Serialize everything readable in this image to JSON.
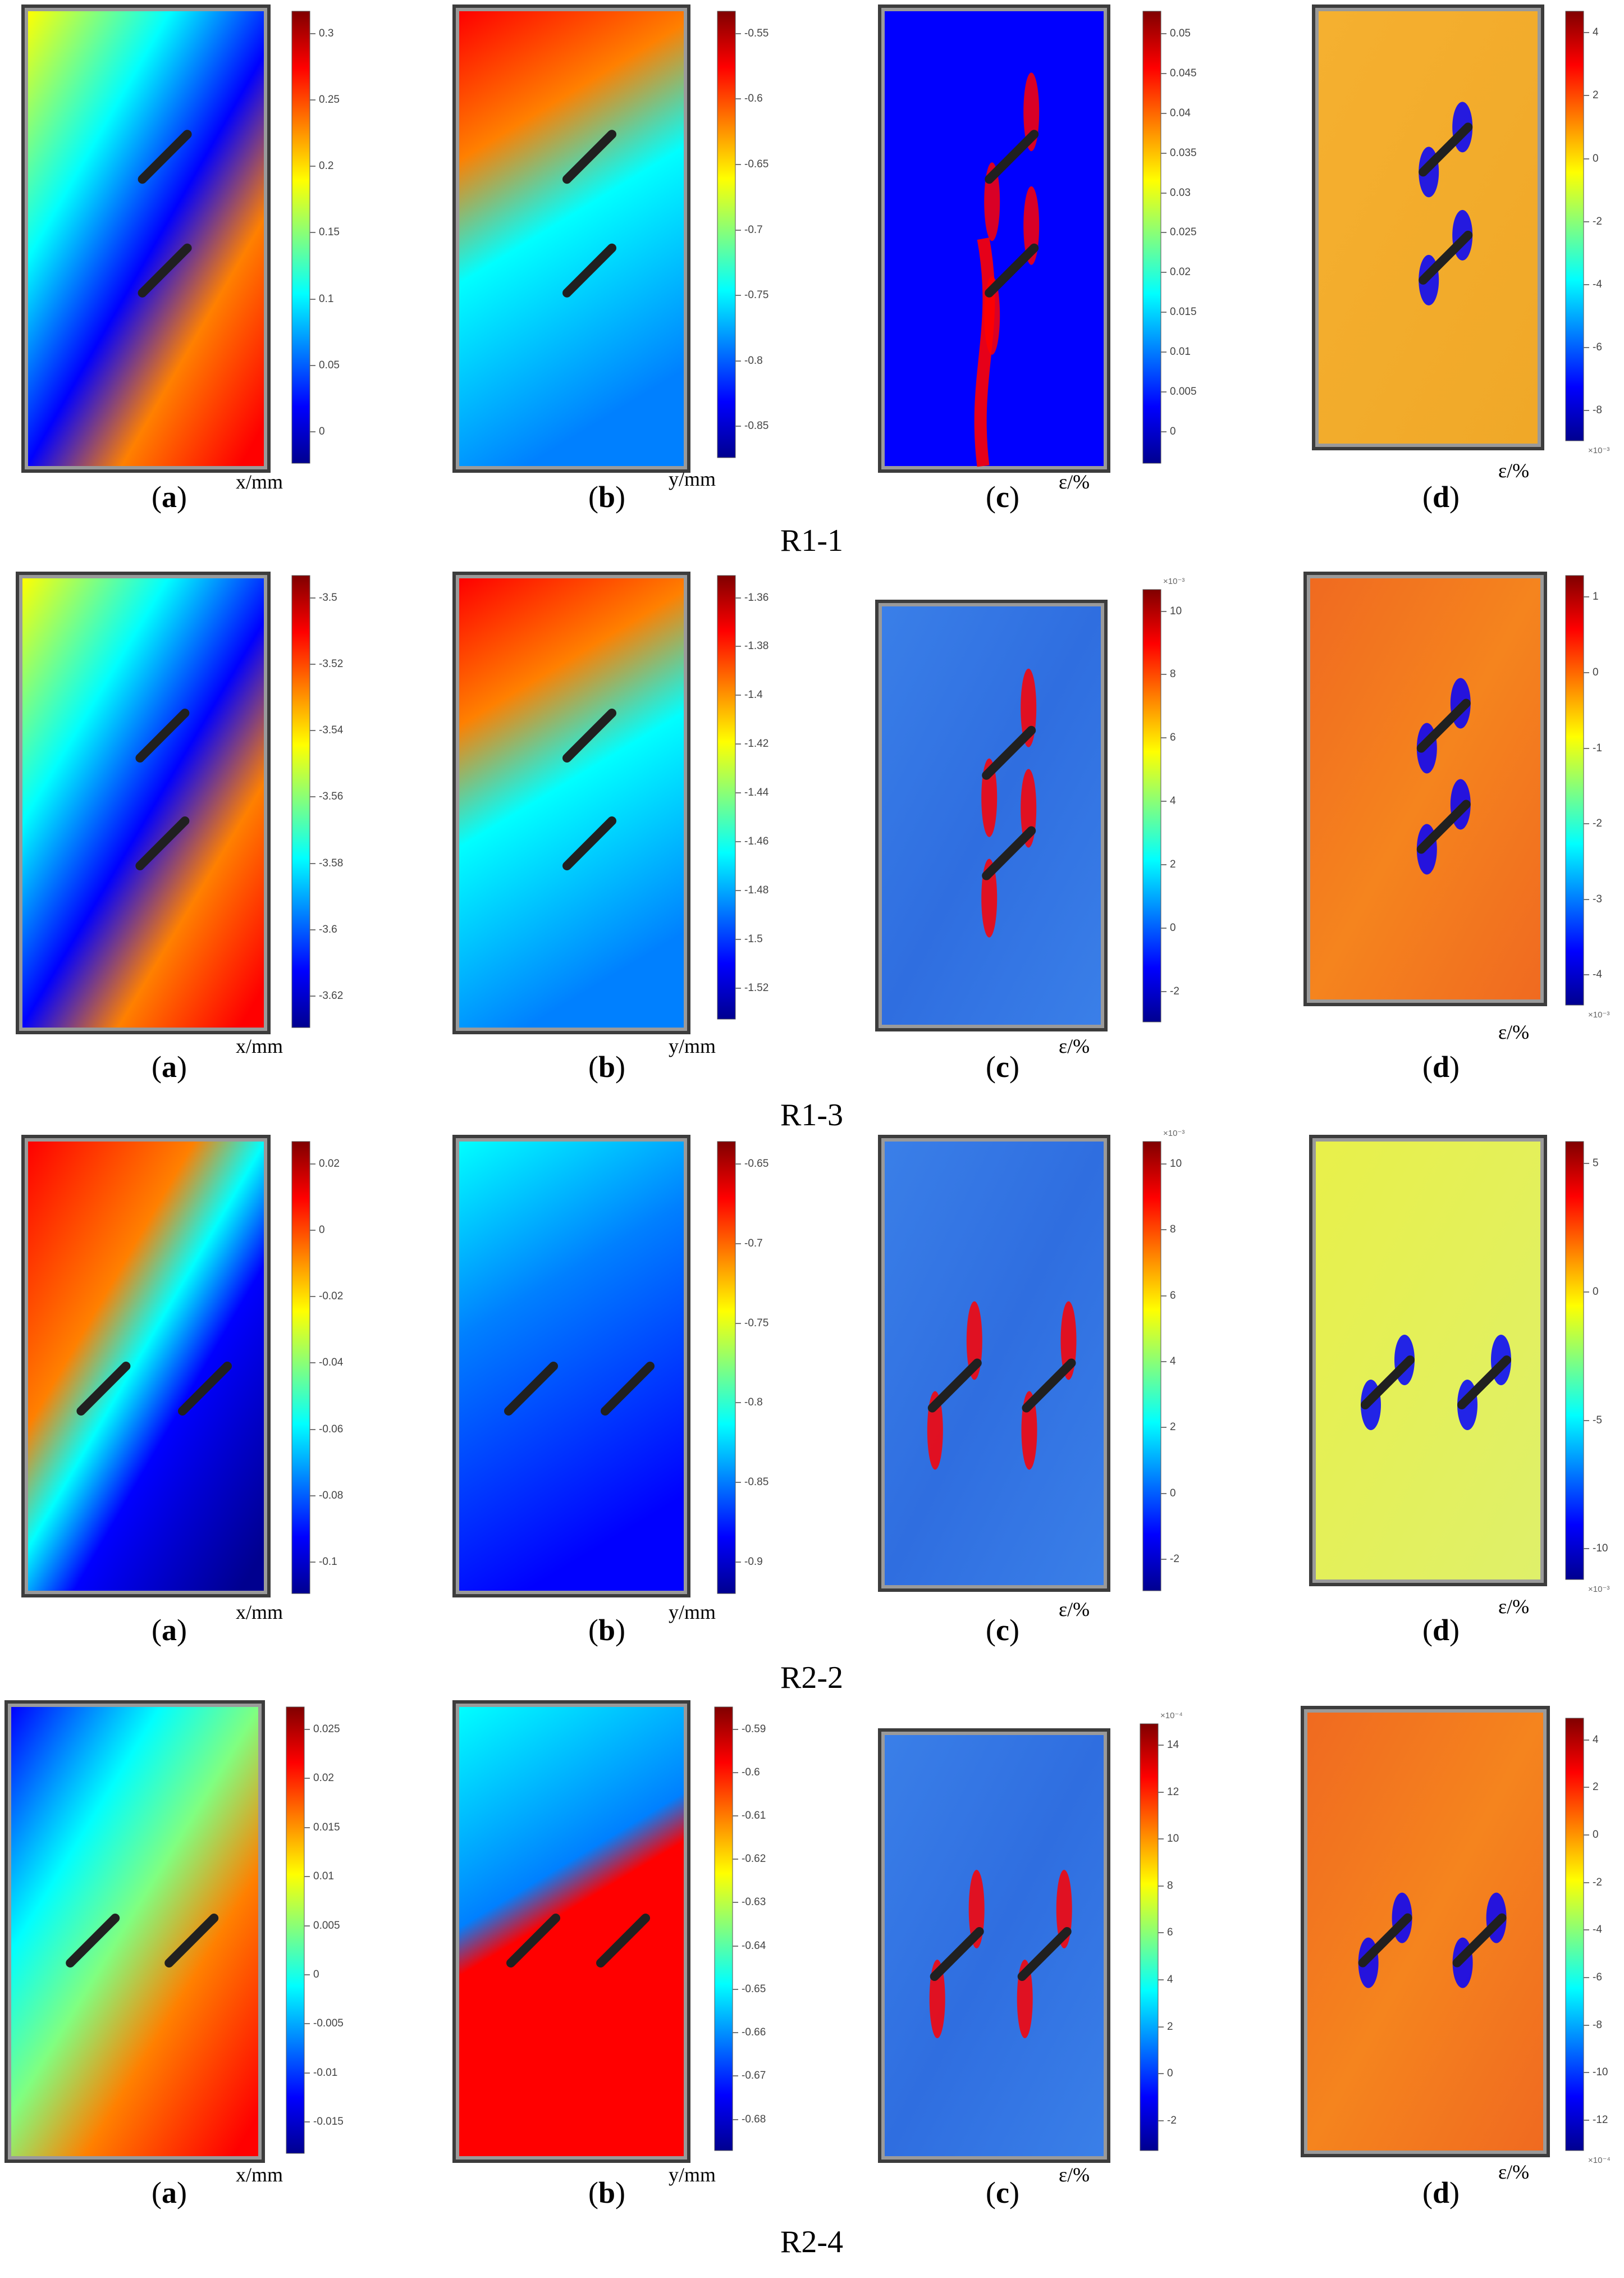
{
  "rows": [
    {
      "title": "R1-1",
      "panels": [
        {
          "label": "a",
          "unit": "x/mm",
          "exponent": "",
          "ticks": [
            "0.3",
            "0.25",
            "0.2",
            "0.15",
            "0.1",
            "0.05",
            "0"
          ],
          "map": "x11"
        },
        {
          "label": "b",
          "unit": "y/mm",
          "exponent": "",
          "ticks": [
            "-0.55",
            "-0.6",
            "-0.65",
            "-0.7",
            "-0.75",
            "-0.8",
            "-0.85"
          ],
          "map": "y11"
        },
        {
          "label": "c",
          "unit": "ε/%",
          "exponent": "",
          "ticks": [
            "0.05",
            "0.045",
            "0.04",
            "0.035",
            "0.03",
            "0.025",
            "0.02",
            "0.015",
            "0.01",
            "0.005",
            "0"
          ],
          "map": "c11"
        },
        {
          "label": "d",
          "unit": "ε/%",
          "exponent": "×10⁻³",
          "ticks": [
            "4",
            "2",
            "0",
            "-2",
            "-4",
            "-6",
            "-8"
          ],
          "map": "d11"
        }
      ]
    },
    {
      "title": "R1-3",
      "panels": [
        {
          "label": "a",
          "unit": "x/mm",
          "exponent": "",
          "ticks": [
            "-3.5",
            "-3.52",
            "-3.54",
            "-3.56",
            "-3.58",
            "-3.6",
            "-3.62"
          ],
          "map": "x13"
        },
        {
          "label": "b",
          "unit": "y/mm",
          "exponent": "",
          "ticks": [
            "-1.36",
            "-1.38",
            "-1.4",
            "-1.42",
            "-1.44",
            "-1.46",
            "-1.48",
            "-1.5",
            "-1.52"
          ],
          "map": "y13"
        },
        {
          "label": "c",
          "unit": "ε/%",
          "exponent": "×10⁻³",
          "ticks": [
            "10",
            "8",
            "6",
            "4",
            "2",
            "0",
            "-2"
          ],
          "map": "c13"
        },
        {
          "label": "d",
          "unit": "ε/%",
          "exponent": "×10⁻³",
          "ticks": [
            "1",
            "0",
            "-1",
            "-2",
            "-3",
            "-4"
          ],
          "map": "d13"
        }
      ]
    },
    {
      "title": "R2-2",
      "panels": [
        {
          "label": "a",
          "unit": "x/mm",
          "exponent": "",
          "ticks": [
            "0.02",
            "0",
            "-0.02",
            "-0.04",
            "-0.06",
            "-0.08",
            "-0.1"
          ],
          "map": "x22"
        },
        {
          "label": "b",
          "unit": "y/mm",
          "exponent": "",
          "ticks": [
            "-0.65",
            "-0.7",
            "-0.75",
            "-0.8",
            "-0.85",
            "-0.9"
          ],
          "map": "y22"
        },
        {
          "label": "c",
          "unit": "ε/%",
          "exponent": "×10⁻³",
          "ticks": [
            "10",
            "8",
            "6",
            "4",
            "2",
            "0",
            "-2"
          ],
          "map": "c22"
        },
        {
          "label": "d",
          "unit": "ε/%",
          "exponent": "×10⁻³",
          "ticks": [
            "5",
            "0",
            "-5",
            "-10"
          ],
          "map": "d22"
        }
      ]
    },
    {
      "title": "R2-4",
      "panels": [
        {
          "label": "a",
          "unit": "x/mm",
          "exponent": "",
          "ticks": [
            "0.025",
            "0.02",
            "0.015",
            "0.01",
            "0.005",
            "0",
            "-0.005",
            "-0.01",
            "-0.015"
          ],
          "map": "x24"
        },
        {
          "label": "b",
          "unit": "y/mm",
          "exponent": "",
          "ticks": [
            "-0.59",
            "-0.6",
            "-0.61",
            "-0.62",
            "-0.63",
            "-0.64",
            "-0.65",
            "-0.66",
            "-0.67",
            "-0.68"
          ],
          "map": "y24"
        },
        {
          "label": "c",
          "unit": "ε/%",
          "exponent": "×10⁻⁴",
          "ticks": [
            "14",
            "12",
            "10",
            "8",
            "6",
            "4",
            "2",
            "0",
            "-2"
          ],
          "map": "c24"
        },
        {
          "label": "d",
          "unit": "ε/%",
          "exponent": "×10⁻⁴",
          "ticks": [
            "4",
            "2",
            "0",
            "-2",
            "-4",
            "-6",
            "-8",
            "-10",
            "-12"
          ],
          "map": "d24"
        }
      ]
    }
  ],
  "colors": {
    "jet": [
      "#00008f",
      "#0000ff",
      "#0080ff",
      "#00ffff",
      "#80ff80",
      "#ffff00",
      "#ff8000",
      "#ff0000",
      "#800000"
    ],
    "frame": "#9a9a9a",
    "slot": "#202020"
  }
}
